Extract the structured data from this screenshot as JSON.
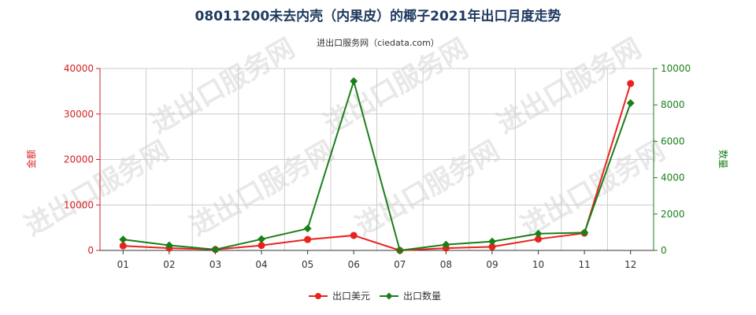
{
  "chart_data": {
    "type": "line",
    "title": "08011200未去内壳（内果皮）的椰子2021年出口月度走势",
    "subtitle": "进出口服务网（ciedata.com）",
    "categories": [
      "01",
      "02",
      "03",
      "04",
      "05",
      "06",
      "07",
      "08",
      "09",
      "10",
      "11",
      "12"
    ],
    "y_left": {
      "label": "金额",
      "ylim": [
        0,
        40000
      ],
      "ticks": [
        0,
        10000,
        20000,
        30000,
        40000
      ],
      "color": "#d42020"
    },
    "y_right": {
      "label": "数量",
      "ylim": [
        0,
        10000
      ],
      "ticks": [
        0,
        2000,
        4000,
        6000,
        8000,
        10000
      ],
      "color": "#1a7f1a"
    },
    "series": [
      {
        "name": "出口美元",
        "axis": "left",
        "color": "#e8231e",
        "marker": "circle",
        "values": [
          1000,
          500,
          200,
          1100,
          2400,
          3300,
          0,
          500,
          800,
          2500,
          3800,
          36700
        ]
      },
      {
        "name": "出口数量",
        "axis": "right",
        "color": "#1a7f1a",
        "marker": "diamond",
        "values": [
          600,
          280,
          50,
          620,
          1200,
          9300,
          0,
          320,
          490,
          920,
          980,
          8100
        ]
      }
    ],
    "grid": true,
    "legend_position": "bottom-center"
  },
  "watermark": "进出口服务网"
}
